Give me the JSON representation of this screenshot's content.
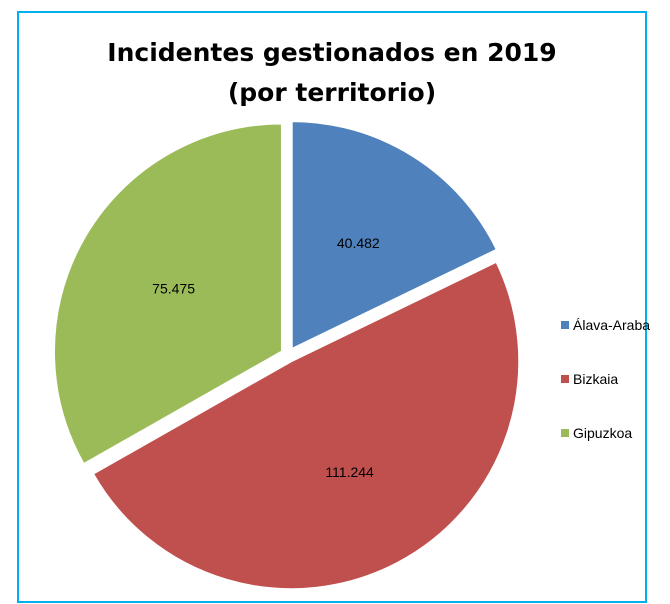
{
  "chart_data": {
    "type": "pie",
    "title": [
      "Incidentes gestionados en 2019",
      "(por territorio)"
    ],
    "categories": [
      "Álava-Araba",
      "Bizkaia",
      "Gipuzkoa"
    ],
    "values": [
      40482,
      111244,
      75475
    ],
    "value_labels": [
      "40.482",
      "111.244",
      "75.475"
    ],
    "colors": [
      "#4f81bd",
      "#c0504d",
      "#9bbb59"
    ],
    "legend_position": "right",
    "exploded": true
  }
}
